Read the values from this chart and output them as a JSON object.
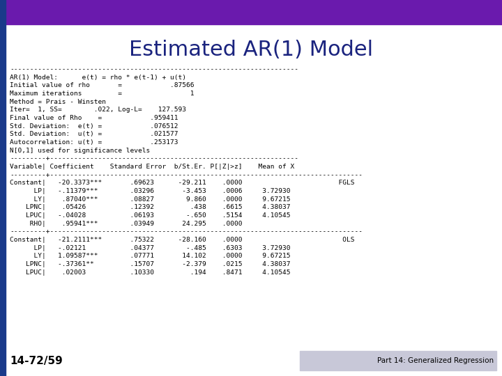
{
  "title": "Estimated AR(1) Model",
  "title_color": "#1a237e",
  "title_fontsize": 22,
  "bg_color": "#ffffff",
  "top_bar_color": "#6a1aad",
  "left_bar_color": "#1a3a8a",
  "bottom_footer_bg": "#c8c8d8",
  "slide_number": "14-72/59",
  "slide_number_color": "#000000",
  "footer_text": "Part 14: Generalized Regression",
  "body_fontsize": 6.8,
  "body_font": "monospace",
  "body_text": "------------------------------------------------------------------------\nAR(1) Model:      e(t) = rho * e(t-1) + u(t)\nInitial value of rho       =            .87566\nMaximum iterations         =                 1\nMethod = Prais - Winsten\nIter=  1, SS=        .022, Log-L=    127.593\nFinal value of Rho    =            .959411\nStd. Deviation:  e(t) =            .076512\nStd. Deviation:  u(t) =            .021577\nAutocorrelation: u(t) =            .253173\nN[0,1] used for significance levels\n---------+--------------------------------------------------------------\nVariable| Coefficient    Standard Error  b/St.Er. P[|Z|>z]    Mean of X\n---------+------------------------------------------------------------------------------\nConstant|   -20.3373***       .69623      -29.211    .0000                        FGLS\n      LP|   -.11379***        .03296       -3.453    .0006     3.72930\n      LY|    .87040***        .08827        9.860    .0000     9.67215\n    LPNC|    .05426           .12392         .438    .6615     4.38037\n    LPUC|   -.04028           .06193        -.650    .5154     4.10545\n     RHO|    .95941***        .03949       24.295    .0000\n---------+------------------------------------------------------------------------------\nConstant|   -21.2111***       .75322      -28.160    .0000                         OLS\n      LP|   -.02121           .04377        -.485    .6303     3.72930\n      LY|   1.09587***        .07771       14.102    .0000     9.67215\n    LPNC|   -.37361**         .15707       -2.379    .0215     4.38037\n    LPUC|    .02003           .10330         .194    .8471     4.10545"
}
